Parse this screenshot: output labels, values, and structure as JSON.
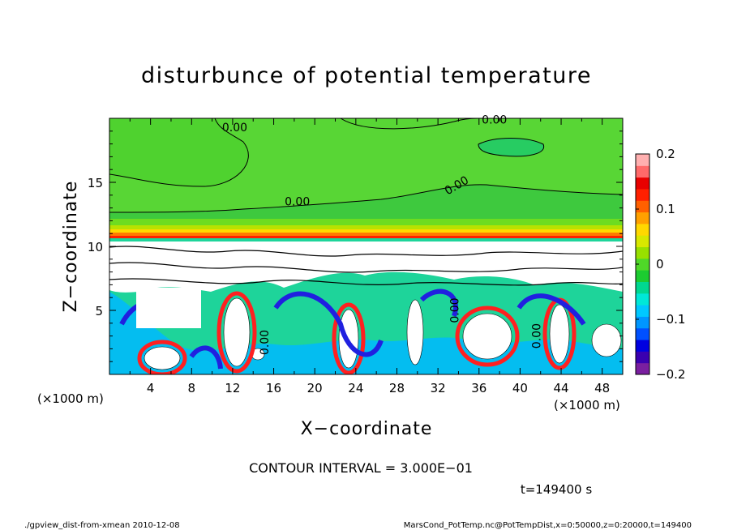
{
  "chart_data": {
    "type": "heatmap",
    "title": "disturbunce of potential temperature",
    "xlabel": "X−coordinate",
    "ylabel": "Z−coordinate",
    "x_unit_left": "(×1000 m)",
    "x_unit_right": "(×1000 m)",
    "xlim": [
      0,
      50
    ],
    "ylim": [
      0,
      20
    ],
    "x_ticks": [
      4,
      8,
      12,
      16,
      20,
      24,
      28,
      32,
      36,
      40,
      44,
      48
    ],
    "y_ticks": [
      5,
      10,
      15
    ],
    "colorbar": {
      "range": [
        -0.2,
        0.2
      ],
      "ticks": [
        "0.2",
        "0.1",
        "0",
        "−0.1",
        "−0.2"
      ],
      "tick_values": [
        0.2,
        0.1,
        0,
        -0.1,
        -0.2
      ],
      "colors": [
        "#7a1fa0",
        "#3a00b0",
        "#0000e0",
        "#0050ff",
        "#0096ff",
        "#00c8ff",
        "#00e8d8",
        "#00d890",
        "#1ccc30",
        "#4fd828",
        "#98e000",
        "#d8e800",
        "#ffd800",
        "#ffa000",
        "#ff6000",
        "#ff2000",
        "#e80000",
        "#ff6a6a",
        "#ffb0b0"
      ]
    },
    "contour_labels": [
      {
        "text": "0.00",
        "x": 12.2,
        "z": 19.0
      },
      {
        "text": "0.00",
        "x": 37.5,
        "z": 19.6
      },
      {
        "text": "0.00",
        "x": 34.0,
        "z": 14.5
      },
      {
        "text": "0.00",
        "x": 18.3,
        "z": 13.2
      },
      {
        "text": "0.00",
        "x": 34.0,
        "z": 5.0
      },
      {
        "text": "0.00",
        "x": 42.0,
        "z": 3.0
      },
      {
        "text": "0.00",
        "x": 15.5,
        "z": 2.5
      }
    ],
    "contour_interval_text": "CONTOUR INTERVAL = 3.000E−01",
    "time_text": "t=149400 s"
  },
  "footer": {
    "left": "./gpview_dist-from-xmean 2010-12-08",
    "right": "MarsCond_PotTemp.nc@PotTempDist,x=0:50000,z=0:20000,t=149400"
  }
}
